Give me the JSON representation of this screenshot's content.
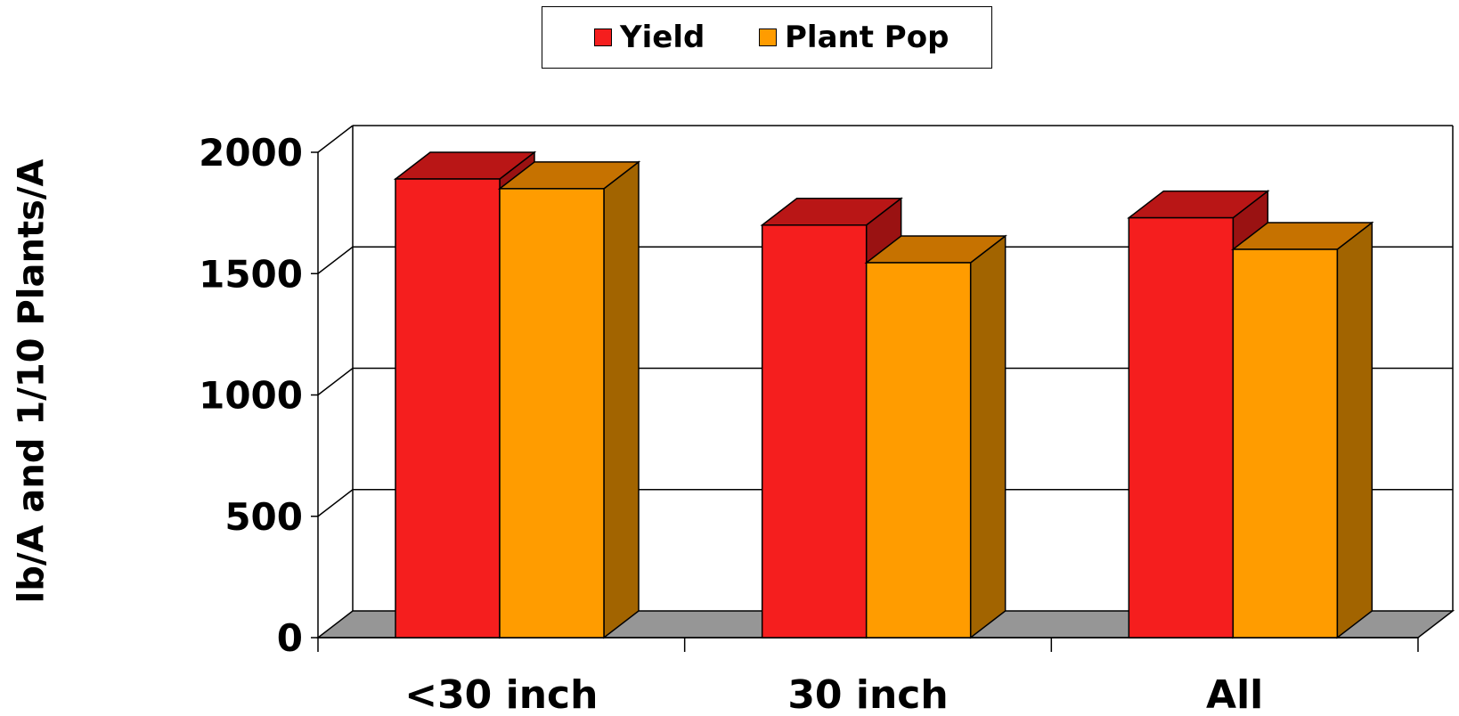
{
  "chart_data": {
    "type": "bar",
    "categories": [
      "<30 inch",
      "30 inch",
      "All"
    ],
    "series": [
      {
        "name": "Yield",
        "values": [
          1890,
          1700,
          1730
        ]
      },
      {
        "name": "Plant Pop",
        "values": [
          1850,
          1545,
          1600
        ]
      }
    ],
    "title": "",
    "xlabel": "",
    "ylabel": "lb/A and 1/10 Plants/A",
    "ylim": [
      0,
      2000
    ],
    "yticks": [
      "0",
      "500",
      "1000",
      "1500",
      "2000"
    ],
    "grid": true,
    "legend_position": "top-center",
    "style": "3d-clustered-column"
  },
  "colors": {
    "yield_front": "#f51e1e",
    "yield_top": "#b91616",
    "yield_side": "#9a1212",
    "pop_front": "#ff9c00",
    "pop_top": "#c67200",
    "pop_side": "#a26400",
    "floor": "#969696",
    "grid": "#000000"
  }
}
